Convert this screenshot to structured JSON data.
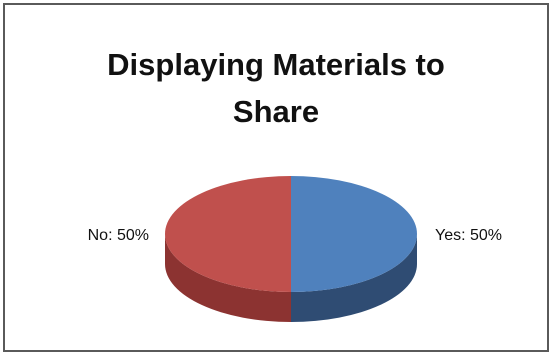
{
  "chart_data": {
    "type": "pie",
    "title": "Displaying Materials  to\nShare",
    "slices": [
      {
        "label": "Yes",
        "value": 50,
        "text": "Yes: 50%",
        "color": "#4f81bd",
        "side_color": "#2f4c73"
      },
      {
        "label": "No",
        "value": 50,
        "text": "No: 50%",
        "color": "#c0504d",
        "side_color": "#8c3331"
      }
    ],
    "style": "3d-pie",
    "legend": "none"
  }
}
